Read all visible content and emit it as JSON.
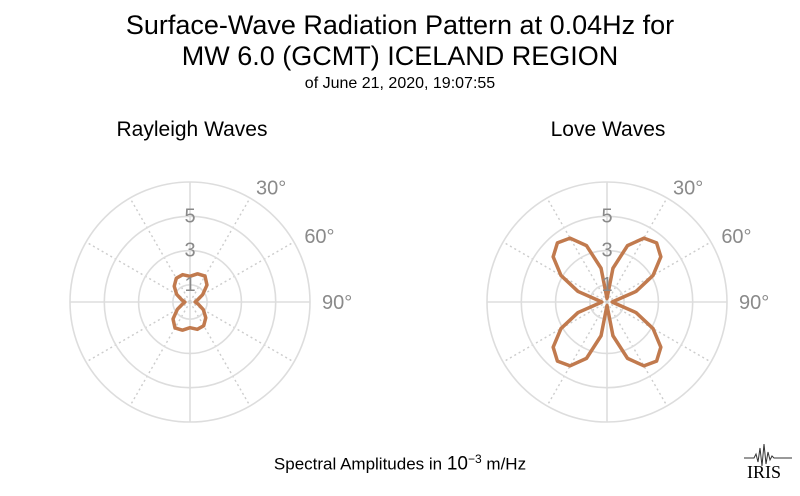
{
  "header": {
    "title_line1": "Surface-Wave Radiation Pattern at 0.04Hz for",
    "title_line2": "MW 6.0 (GCMT) ICELAND REGION",
    "subtitle": "of June 21, 2020, 19:07:55"
  },
  "footer": {
    "label_prefix": "Spectral Amplitudes in ",
    "sci_base": "10",
    "sci_exp": "−3",
    "unit": "m/Hz"
  },
  "logo": {
    "text": "IRIS"
  },
  "colors": {
    "pattern": "#c17a4e",
    "grid_circle": "#dddddd",
    "grid_spoke": "#cccccc",
    "tick_label": "#8a8a8a"
  },
  "chart_data": [
    {
      "type": "polar",
      "title": "Rayleigh Waves",
      "r_ticks": [
        "1",
        "3",
        "5"
      ],
      "r_tick_values": [
        1,
        3,
        5
      ],
      "r_max": 7,
      "angle_ticks": [
        "30°",
        "60°",
        "90°"
      ],
      "angle_tick_values": [
        30,
        60,
        90
      ],
      "spoke_step_deg": 30,
      "series": [
        {
          "theta": [
            0,
            15,
            30,
            45,
            60,
            75,
            90,
            105,
            120,
            135,
            150,
            165,
            180,
            195,
            210,
            225,
            240,
            255,
            270,
            285,
            300,
            315,
            330,
            345
          ],
          "r": [
            1.5,
            1.7,
            1.75,
            1.4,
            0.85,
            0.45,
            0.3,
            0.5,
            0.9,
            1.3,
            1.6,
            1.65,
            1.5,
            1.7,
            1.75,
            1.4,
            0.85,
            0.45,
            0.3,
            0.5,
            0.9,
            1.3,
            1.6,
            1.65
          ]
        }
      ]
    },
    {
      "type": "polar",
      "title": "Love Waves",
      "r_ticks": [
        "1",
        "3",
        "5"
      ],
      "r_tick_values": [
        1,
        3,
        5
      ],
      "r_max": 7,
      "angle_ticks": [
        "30°",
        "60°",
        "90°"
      ],
      "angle_tick_values": [
        30,
        60,
        90
      ],
      "spoke_step_deg": 30,
      "series": [
        {
          "theta": [
            0,
            10,
            20,
            30,
            40,
            50,
            60,
            70,
            80,
            90,
            100,
            110,
            120,
            130,
            140,
            150,
            160,
            170,
            180,
            190,
            200,
            210,
            220,
            230,
            240,
            250,
            260,
            270,
            280,
            290,
            300,
            310,
            320,
            330,
            340,
            350
          ],
          "r": [
            0.2,
            2.0,
            3.5,
            4.3,
            4.5,
            4.1,
            3.1,
            1.8,
            0.5,
            0.3,
            0.5,
            1.8,
            3.1,
            4.1,
            4.5,
            4.3,
            3.5,
            2.0,
            0.2,
            2.0,
            3.5,
            4.3,
            4.5,
            4.1,
            3.1,
            1.8,
            0.5,
            0.3,
            0.5,
            1.8,
            3.1,
            4.1,
            4.5,
            4.3,
            3.5,
            2.0
          ]
        }
      ]
    }
  ]
}
